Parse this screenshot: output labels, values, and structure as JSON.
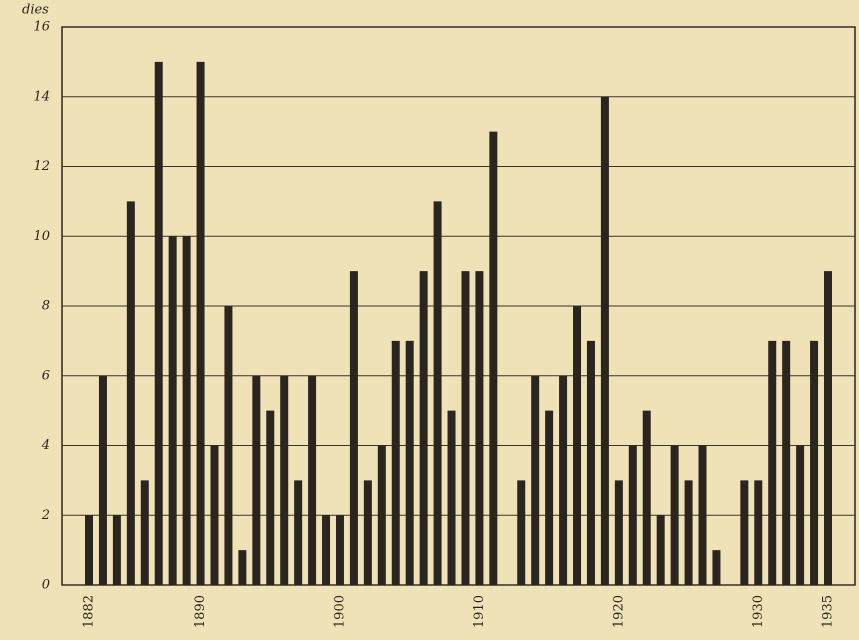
{
  "chart_data": {
    "type": "bar",
    "y_label": "dies",
    "categories": [
      "1882",
      null,
      null,
      null,
      null,
      null,
      null,
      null,
      "1890",
      null,
      null,
      null,
      null,
      null,
      null,
      null,
      null,
      null,
      "1900",
      null,
      null,
      null,
      null,
      null,
      null,
      null,
      null,
      null,
      "1910",
      null,
      null,
      null,
      null,
      null,
      null,
      null,
      null,
      null,
      "1920",
      null,
      null,
      null,
      null,
      null,
      null,
      null,
      null,
      null,
      "1930",
      null,
      null,
      null,
      null,
      "1935"
    ],
    "values": [
      2,
      6,
      2,
      11,
      3,
      15,
      10,
      10,
      15,
      4,
      8,
      1,
      6,
      5,
      6,
      3,
      6,
      2,
      2,
      9,
      3,
      4,
      7,
      7,
      9,
      11,
      5,
      9,
      9,
      13,
      0,
      3,
      6,
      5,
      6,
      8,
      7,
      14,
      3,
      4,
      5,
      2,
      4,
      3,
      4,
      1,
      0,
      3,
      3,
      7,
      7,
      4,
      7,
      9
    ],
    "color": "#2b2520",
    "ylim": [
      0,
      16
    ],
    "yticks": [
      0,
      2,
      4,
      6,
      8,
      10,
      12,
      14,
      16
    ],
    "grid": true
  }
}
